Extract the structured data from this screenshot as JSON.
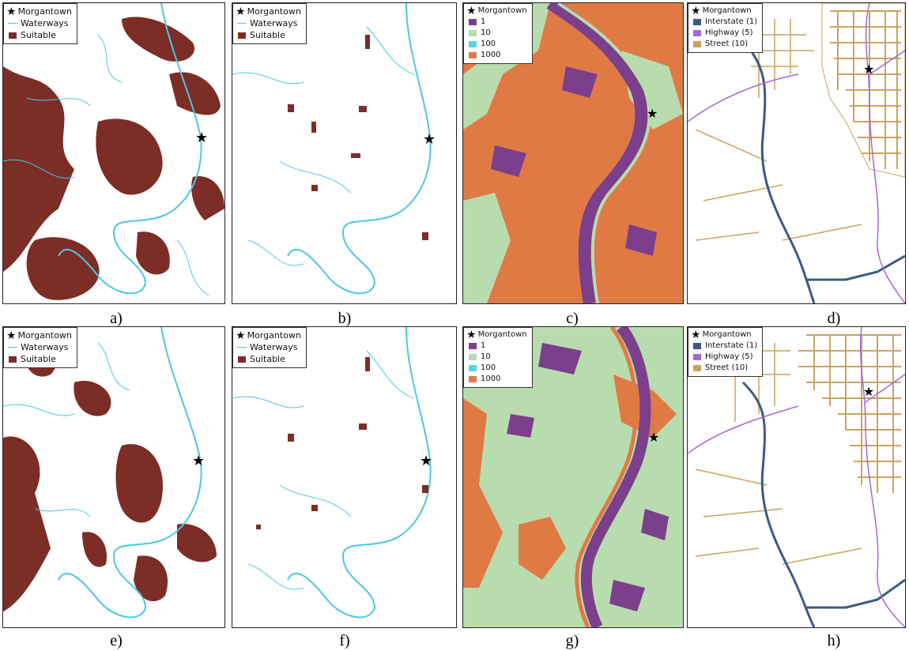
{
  "panels": {
    "a": {
      "caption": "a)",
      "legend": [
        "Morgantown",
        "Waterways",
        "Suitable"
      ]
    },
    "b": {
      "caption": "b)",
      "legend": [
        "Morgantown",
        "Waterways",
        "Suitable"
      ]
    },
    "c": {
      "caption": "c)",
      "legend": [
        "Morgantown",
        "1",
        "10",
        "100",
        "1000"
      ]
    },
    "d": {
      "caption": "d)",
      "legend": [
        "Morgantown",
        "Interstate (1)",
        "Highway (5)",
        "Street (10)"
      ]
    },
    "e": {
      "caption": "e)",
      "legend": [
        "Morgantown",
        "Waterways",
        "Suitable"
      ]
    },
    "f": {
      "caption": "f)",
      "legend": [
        "Morgantown",
        "Waterways",
        "Suitable"
      ]
    },
    "g": {
      "caption": "g)",
      "legend": [
        "Morgantown",
        "1",
        "10",
        "100",
        "1000"
      ]
    },
    "h": {
      "caption": "h)",
      "legend": [
        "Morgantown",
        "Interstate (1)",
        "Highway (5)",
        "Street (10)"
      ]
    }
  },
  "colors": {
    "suitable": "#7b2d26",
    "waterways": "#4fc6e0",
    "cost_1": "#7b3f8c",
    "cost_10": "#b8dcae",
    "cost_100": "#54d6e8",
    "cost_1000": "#e07a45",
    "interstate": "#3a5a86",
    "highway": "#a568d6",
    "street": "#c9a45c"
  },
  "icons": {
    "marker": "star-icon"
  }
}
